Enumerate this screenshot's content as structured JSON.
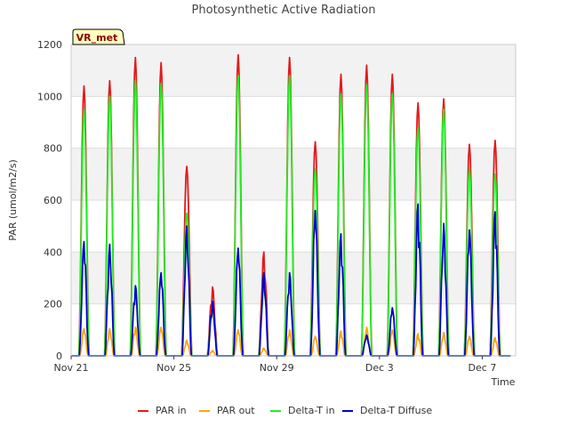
{
  "chart_data": {
    "type": "line",
    "title": "Photosynthetic Active Radiation",
    "xlabel": "Time",
    "ylabel": "PAR (umol/m2/s)",
    "badge": "VR_met",
    "ylim": [
      0,
      1200
    ],
    "yticks": [
      0,
      200,
      400,
      600,
      800,
      1000,
      1200
    ],
    "xlim": [
      0,
      17.3
    ],
    "xticks": [
      {
        "pos": 0,
        "label": "Nov 21"
      },
      {
        "pos": 4,
        "label": "Nov 25"
      },
      {
        "pos": 8,
        "label": "Nov 29"
      },
      {
        "pos": 12,
        "label": "Dec 3"
      },
      {
        "pos": 16,
        "label": "Dec 7"
      }
    ],
    "grid": true,
    "legend_position": "bottom",
    "days": [
      {
        "day": 0,
        "par_in": 1040,
        "par_out": 105,
        "delta_in": 950,
        "diffuse": 440
      },
      {
        "day": 1,
        "par_in": 1060,
        "par_out": 105,
        "delta_in": 1000,
        "diffuse": 430
      },
      {
        "day": 2,
        "par_in": 1150,
        "par_out": 110,
        "delta_in": 1060,
        "diffuse": 270
      },
      {
        "day": 3,
        "par_in": 1130,
        "par_out": 110,
        "delta_in": 1050,
        "diffuse": 320
      },
      {
        "day": 4,
        "par_in": 730,
        "par_out": 60,
        "delta_in": 550,
        "diffuse": 500
      },
      {
        "day": 5,
        "par_in": 265,
        "par_out": 20,
        "delta_in": 200,
        "diffuse": 210
      },
      {
        "day": 6,
        "par_in": 1160,
        "par_out": 100,
        "delta_in": 1080,
        "diffuse": 415
      },
      {
        "day": 7,
        "par_in": 400,
        "par_out": 30,
        "delta_in": 300,
        "diffuse": 320
      },
      {
        "day": 8,
        "par_in": 1150,
        "par_out": 100,
        "delta_in": 1080,
        "diffuse": 320
      },
      {
        "day": 9,
        "par_in": 825,
        "par_out": 75,
        "delta_in": 720,
        "diffuse": 560
      },
      {
        "day": 10,
        "par_in": 1085,
        "par_out": 95,
        "delta_in": 1010,
        "diffuse": 470
      },
      {
        "day": 11,
        "par_in": 1120,
        "par_out": 110,
        "delta_in": 1045,
        "diffuse": 80
      },
      {
        "day": 12,
        "par_in": 1085,
        "par_out": 100,
        "delta_in": 1010,
        "diffuse": 185
      },
      {
        "day": 13,
        "par_in": 975,
        "par_out": 85,
        "delta_in": 880,
        "diffuse": 585
      },
      {
        "day": 14,
        "par_in": 990,
        "par_out": 90,
        "delta_in": 950,
        "diffuse": 510
      },
      {
        "day": 15,
        "par_in": 815,
        "par_out": 75,
        "delta_in": 720,
        "diffuse": 485
      },
      {
        "day": 16,
        "par_in": 830,
        "par_out": 70,
        "delta_in": 700,
        "diffuse": 555
      }
    ],
    "series": [
      {
        "key": "par_in",
        "name": "PAR in",
        "color": "#e31a1c"
      },
      {
        "key": "par_out",
        "name": "PAR out",
        "color": "#ffa500"
      },
      {
        "key": "delta_in",
        "name": "Delta-T in",
        "color": "#22ee22"
      },
      {
        "key": "diffuse",
        "name": "Delta-T Diffuse",
        "color": "#0000cc"
      }
    ]
  }
}
